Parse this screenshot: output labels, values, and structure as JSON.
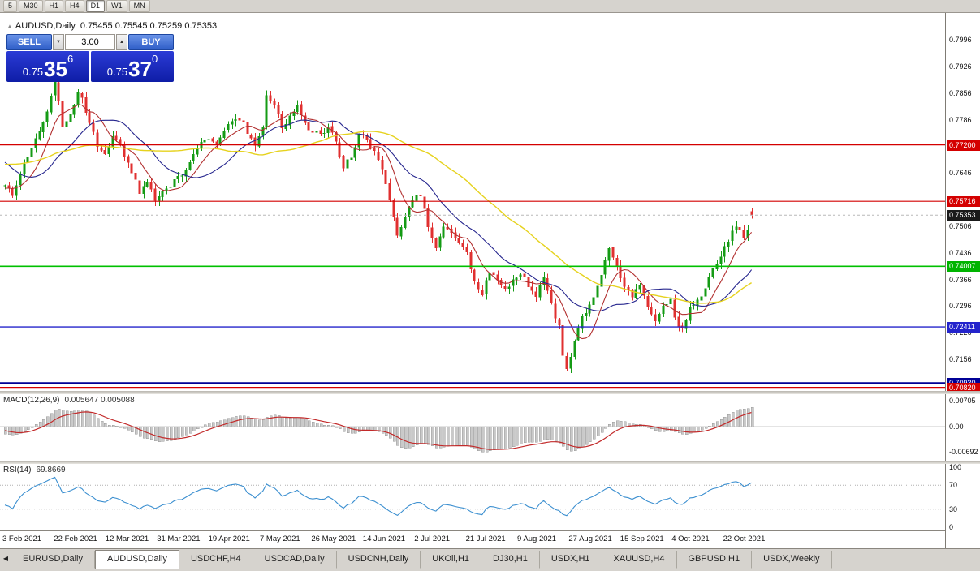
{
  "period_toolbar": {
    "buttons": [
      "5",
      "M30",
      "H1",
      "H4",
      "D1",
      "W1",
      "MN"
    ],
    "active": "D1"
  },
  "chart_header": {
    "symbol": "AUDUSD,Daily",
    "ohlc_text": "0.75455 0.75545 0.75259 0.75353"
  },
  "trade_panel": {
    "sell_label": "SELL",
    "buy_label": "BUY",
    "volume": "3.00",
    "sell_price": {
      "prefix": "0.75",
      "big": "35",
      "sup": "6"
    },
    "buy_price": {
      "prefix": "0.75",
      "big": "37",
      "sup": "0"
    }
  },
  "price_axis": {
    "ticks": [
      "0.7996",
      "0.7926",
      "0.7856",
      "0.7786",
      "0.7716",
      "0.7646",
      "0.7576",
      "0.7506",
      "0.7436",
      "0.7366",
      "0.7296",
      "0.7226",
      "0.7156",
      "0.7086"
    ],
    "badges": [
      {
        "label": "0.77200",
        "value": 0.772,
        "color": "#d40000"
      },
      {
        "label": "0.75716",
        "value": 0.75716,
        "color": "#d40000"
      },
      {
        "label": "0.75353",
        "value": 0.75353,
        "color": "#1a1a1a"
      },
      {
        "label": "0.74007",
        "value": 0.74007,
        "color": "#00b400"
      },
      {
        "label": "0.72411",
        "value": 0.72411,
        "color": "#2424cc"
      },
      {
        "label": "0.70930",
        "value": 0.7093,
        "color": "#000096"
      },
      {
        "label": "0.70820",
        "value": 0.7082,
        "color": "#d40000"
      }
    ]
  },
  "indicators": {
    "macd": {
      "title": "MACD(12,26,9)",
      "values_text": "0.005647 0.005088",
      "axis_ticks": [
        {
          "label": "0.00705",
          "value": 0.00705
        },
        {
          "label": "0.00",
          "value": 0
        },
        {
          "label": "-0.00692",
          "value": -0.00692
        }
      ]
    },
    "rsi": {
      "title": "RSI(14)",
      "value_text": "69.8669",
      "axis_ticks": [
        {
          "label": "100",
          "value": 100
        },
        {
          "label": "70",
          "value": 70
        },
        {
          "label": "30",
          "value": 30
        },
        {
          "label": "0",
          "value": 0
        }
      ]
    }
  },
  "time_axis": {
    "labels": [
      "3 Feb 2021",
      "22 Feb 2021",
      "12 Mar 2021",
      "31 Mar 2021",
      "19 Apr 2021",
      "7 May 2021",
      "26 May 2021",
      "14 Jun 2021",
      "2 Jul 2021",
      "21 Jul 2021",
      "9 Aug 2021",
      "27 Aug 2021",
      "15 Sep 2021",
      "4 Oct 2021",
      "22 Oct 2021"
    ],
    "px_spacing": 63.4
  },
  "tabs": {
    "items": [
      "EURUSD,Daily",
      "AUDUSD,Daily",
      "USDCHF,H4",
      "USDCAD,Daily",
      "USDCNH,Daily",
      "UKOil,H1",
      "DJ30,H1",
      "USDX,H1",
      "XAUUSD,H4",
      "GBPUSD,H1",
      "USDX,Weekly"
    ],
    "active": "AUDUSD,Daily"
  },
  "chart_data": {
    "type": "candlestick",
    "symbol": "AUDUSD",
    "timeframe": "Daily",
    "current_ohlc": {
      "open": 0.75455,
      "high": 0.75545,
      "low": 0.75259,
      "close": 0.75353
    },
    "visible_range": {
      "start": "3 Feb 2021",
      "end": "27 Oct 2021",
      "candles": 195
    },
    "y_axis": {
      "min": 0.7071,
      "max": 0.805,
      "ticks": [
        0.7996,
        0.7926,
        0.7856,
        0.7786,
        0.7716,
        0.7646,
        0.7576,
        0.7506,
        0.7436,
        0.7366,
        0.7296,
        0.7226,
        0.7156,
        0.7086
      ]
    },
    "close_path_anchors": [
      [
        0,
        0.7615
      ],
      [
        2,
        0.7585
      ],
      [
        4,
        0.764
      ],
      [
        6,
        0.769
      ],
      [
        8,
        0.774
      ],
      [
        10,
        0.7775
      ],
      [
        12,
        0.785
      ],
      [
        13,
        0.789
      ],
      [
        15,
        0.777
      ],
      [
        17,
        0.78
      ],
      [
        19,
        0.7855
      ],
      [
        20,
        0.784
      ],
      [
        22,
        0.778
      ],
      [
        24,
        0.772
      ],
      [
        26,
        0.769
      ],
      [
        28,
        0.7745
      ],
      [
        30,
        0.7715
      ],
      [
        33,
        0.765
      ],
      [
        35,
        0.7595
      ],
      [
        37,
        0.7625
      ],
      [
        39,
        0.757
      ],
      [
        41,
        0.7605
      ],
      [
        43,
        0.7615
      ],
      [
        46,
        0.764
      ],
      [
        49,
        0.77
      ],
      [
        52,
        0.7735
      ],
      [
        55,
        0.772
      ],
      [
        58,
        0.777
      ],
      [
        61,
        0.779
      ],
      [
        63,
        0.7755
      ],
      [
        65,
        0.7715
      ],
      [
        67,
        0.777
      ],
      [
        68,
        0.7845
      ],
      [
        70,
        0.783
      ],
      [
        72,
        0.776
      ],
      [
        74,
        0.779
      ],
      [
        76,
        0.782
      ],
      [
        78,
        0.7775
      ],
      [
        80,
        0.7755
      ],
      [
        82,
        0.775
      ],
      [
        84,
        0.7765
      ],
      [
        86,
        0.773
      ],
      [
        88,
        0.766
      ],
      [
        90,
        0.769
      ],
      [
        92,
        0.7745
      ],
      [
        94,
        0.7735
      ],
      [
        96,
        0.77
      ],
      [
        98,
        0.7655
      ],
      [
        100,
        0.7575
      ],
      [
        102,
        0.748
      ],
      [
        104,
        0.753
      ],
      [
        106,
        0.7575
      ],
      [
        108,
        0.759
      ],
      [
        110,
        0.75
      ],
      [
        112,
        0.745
      ],
      [
        114,
        0.751
      ],
      [
        116,
        0.749
      ],
      [
        118,
        0.746
      ],
      [
        120,
        0.7435
      ],
      [
        122,
        0.7355
      ],
      [
        124,
        0.733
      ],
      [
        126,
        0.7385
      ],
      [
        128,
        0.737
      ],
      [
        130,
        0.734
      ],
      [
        132,
        0.7365
      ],
      [
        134,
        0.7385
      ],
      [
        136,
        0.7345
      ],
      [
        138,
        0.732
      ],
      [
        140,
        0.737
      ],
      [
        142,
        0.73
      ],
      [
        144,
        0.724
      ],
      [
        145,
        0.717
      ],
      [
        146,
        0.713
      ],
      [
        148,
        0.72
      ],
      [
        150,
        0.727
      ],
      [
        152,
        0.7295
      ],
      [
        154,
        0.735
      ],
      [
        156,
        0.742
      ],
      [
        157,
        0.7445
      ],
      [
        159,
        0.74
      ],
      [
        161,
        0.735
      ],
      [
        163,
        0.7325
      ],
      [
        165,
        0.7345
      ],
      [
        167,
        0.729
      ],
      [
        169,
        0.725
      ],
      [
        171,
        0.729
      ],
      [
        173,
        0.732
      ],
      [
        174,
        0.726
      ],
      [
        176,
        0.7235
      ],
      [
        178,
        0.729
      ],
      [
        180,
        0.731
      ],
      [
        182,
        0.7345
      ],
      [
        184,
        0.739
      ],
      [
        186,
        0.743
      ],
      [
        188,
        0.747
      ],
      [
        190,
        0.751
      ],
      [
        192,
        0.7475
      ],
      [
        193,
        0.75
      ],
      [
        194,
        0.75353
      ]
    ],
    "horizontal_levels": [
      {
        "price": 0.772,
        "color": "#d40000",
        "width": 1.2,
        "badge": "0.77200"
      },
      {
        "price": 0.75716,
        "color": "#d40000",
        "width": 1.2,
        "badge": "0.75716"
      },
      {
        "price": 0.74007,
        "color": "#00c000",
        "width": 1.6,
        "badge": "0.74007"
      },
      {
        "price": 0.72411,
        "color": "#2424cc",
        "width": 1.4,
        "badge": "0.72411"
      },
      {
        "price": 0.7093,
        "color": "#000096",
        "width": 2.6,
        "badge": "0.70930"
      },
      {
        "price": 0.7082,
        "color": "#d40000",
        "width": 1.2,
        "badge": "0.70820"
      }
    ],
    "bid_line": {
      "price": 0.75353,
      "badge": "0.75353",
      "color": "#1a1a1a"
    },
    "moving_averages": [
      {
        "period": 8,
        "method": "SMA",
        "color": "#b23030",
        "width": 1.1
      },
      {
        "period": 20,
        "method": "SMA",
        "color": "#26268e",
        "width": 1.1
      },
      {
        "period": 45,
        "method": "SMA",
        "color": "#e6d21e",
        "width": 1.4
      }
    ],
    "candle_colors": {
      "up": "#159b15",
      "down": "#e03030"
    },
    "indicators": {
      "macd": {
        "fast": 12,
        "slow": 26,
        "signal": 9,
        "current_macd": 0.005647,
        "current_signal": 0.005088,
        "histogram_color": "#c9c9c9",
        "histogram_border": "#9a9a9a",
        "signal_color": "#c22a2a",
        "axis_max": 0.00705,
        "axis_min": -0.00692
      },
      "rsi": {
        "period": 14,
        "current": 69.8669,
        "color": "#3b8fd0",
        "levels": [
          70,
          30
        ],
        "axis": [
          0,
          100
        ]
      }
    }
  }
}
